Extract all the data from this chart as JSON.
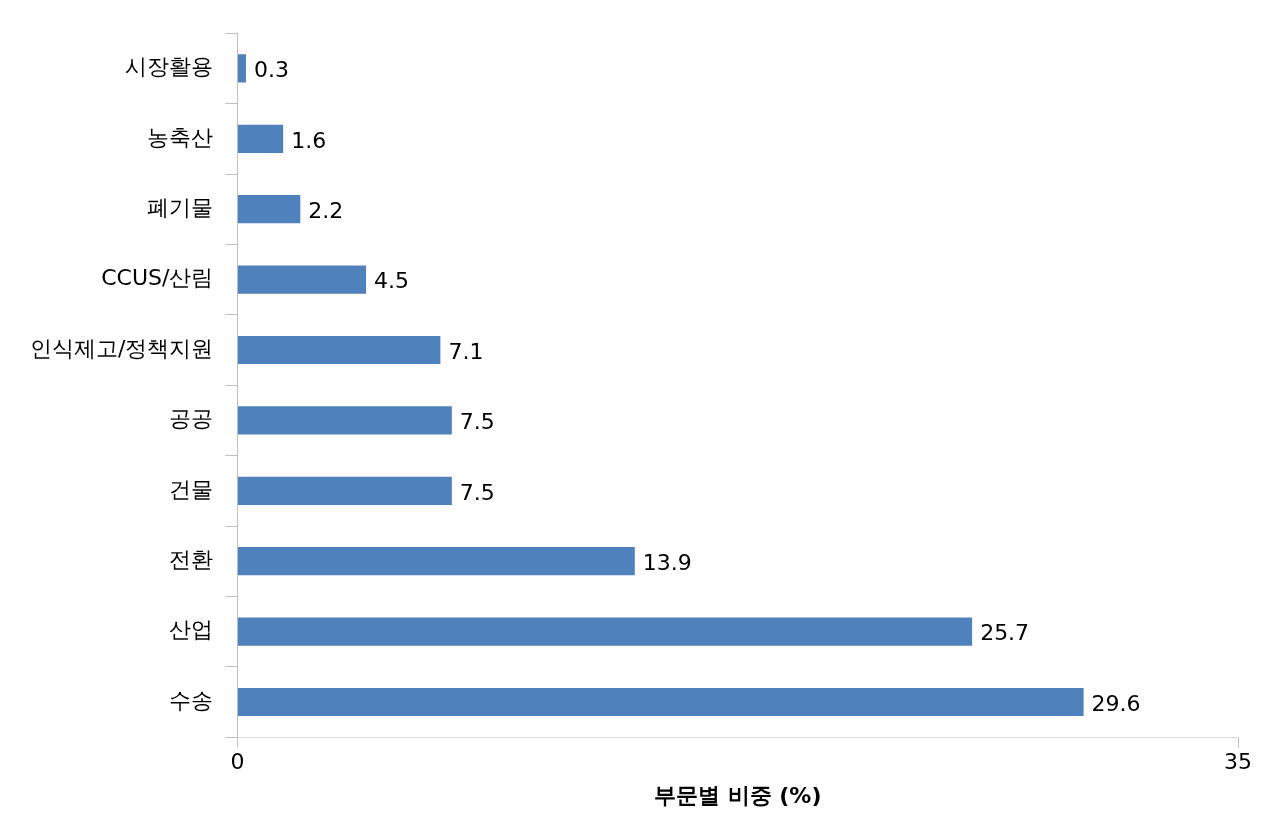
{
  "chart_data": {
    "type": "bar",
    "orientation": "horizontal",
    "xlabel": "부문별 비중 (%)",
    "categories": [
      "시장활용",
      "농축산",
      "폐기물",
      "CCUS/산림",
      "인식제고/정책지원",
      "공공",
      "건물",
      "전환",
      "산업",
      "수송"
    ],
    "values": [
      0.3,
      1.6,
      2.2,
      4.5,
      7.1,
      7.5,
      7.5,
      13.9,
      25.7,
      29.6
    ],
    "color": "#4f81bd",
    "xlim": [
      0,
      35
    ],
    "xticks": [
      0,
      35
    ],
    "grid": false,
    "legend": false,
    "data_labels": true
  }
}
